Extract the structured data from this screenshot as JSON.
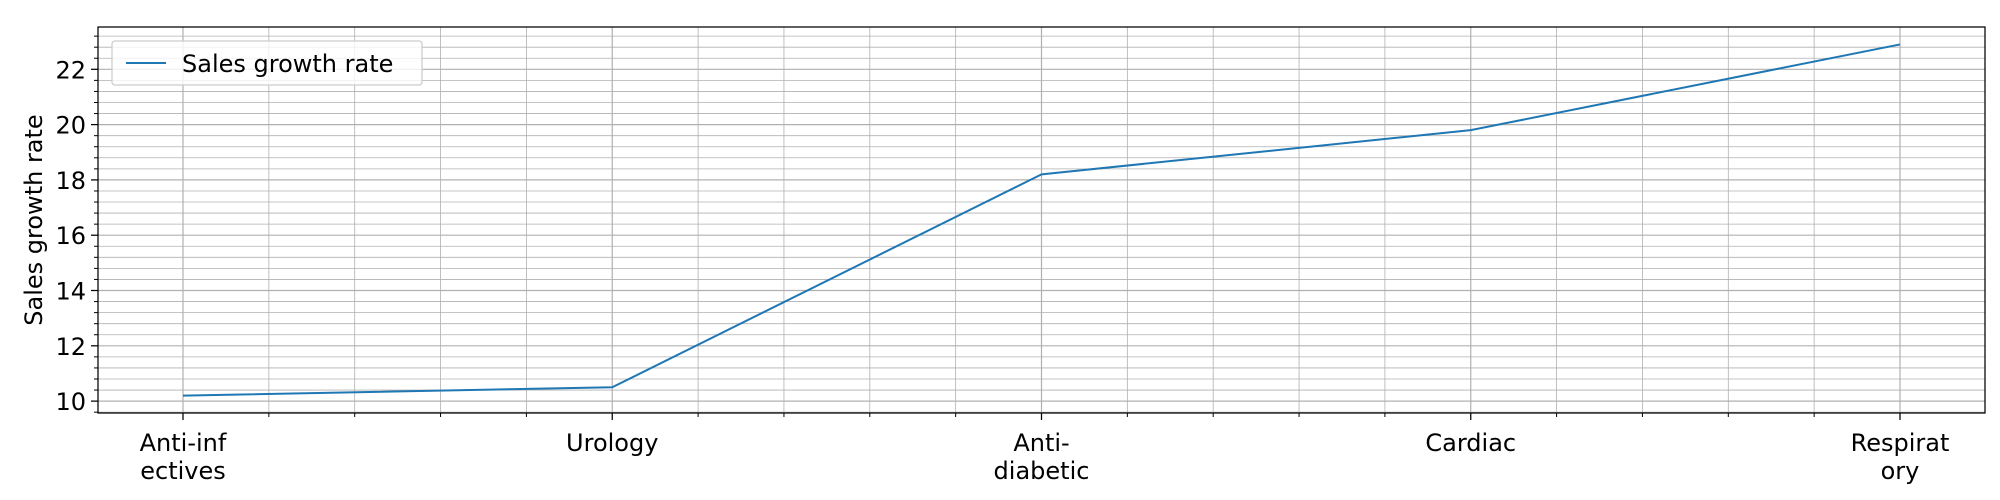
{
  "chart_data": {
    "type": "line",
    "categories": [
      "Anti-infectives",
      "Urology",
      "Anti-diabetic",
      "Cardiac",
      "Respiratory"
    ],
    "category_tick_lines": [
      [
        "Anti-inf",
        "ectives"
      ],
      [
        "Urology"
      ],
      [
        "Anti-",
        "diabetic"
      ],
      [
        "Cardiac"
      ],
      [
        "Respirat",
        "ory"
      ]
    ],
    "series": [
      {
        "name": "Sales growth rate",
        "values": [
          10.2,
          10.5,
          18.2,
          19.8,
          22.9
        ]
      }
    ],
    "title": "",
    "xlabel": "",
    "ylabel": "Sales growth rate",
    "yticks": [
      10,
      12,
      14,
      16,
      18,
      20,
      22
    ],
    "ylim": [
      9.57,
      23.53
    ],
    "grid": true,
    "legend_position": "top-left",
    "colors": {
      "series": "#1f77b4",
      "grid": "#b0b0b0",
      "axis": "#000000"
    }
  }
}
